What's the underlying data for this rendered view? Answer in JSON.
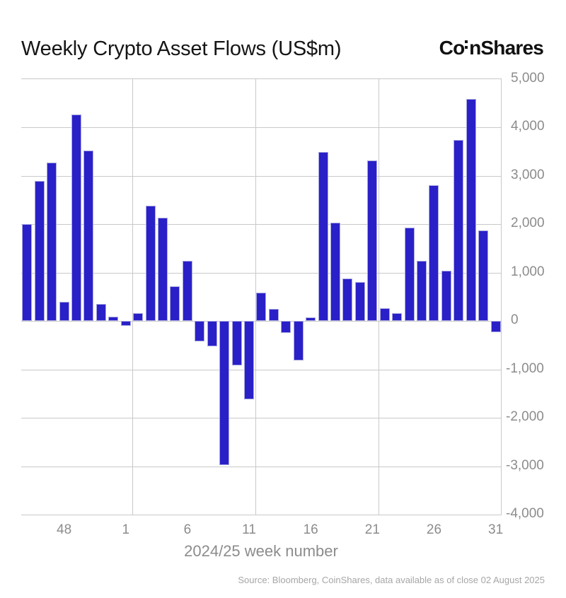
{
  "header": {
    "title": "Weekly Crypto Asset Flows (US$m)",
    "logo_text": "CoinShares",
    "logo_prefix": "Co",
    "logo_suffix": "nShares"
  },
  "footer": {
    "xlabel": "2024/25 week number",
    "source": "Source: Bloomberg, CoinShares, data available as of close 02 August 2025"
  },
  "colors": {
    "bar": "#2a20c8",
    "bar_edge": "#a9a9e0",
    "grid": "#c9c9c9",
    "axis_text": "#8c8c8c",
    "source_text": "#a6a6a6",
    "title_text": "#151515"
  },
  "chart_data": {
    "type": "bar",
    "title": "Weekly Crypto Asset Flows (US$m)",
    "xlabel": "2024/25 week number",
    "ylabel": "",
    "ylim": [
      -4000,
      5000
    ],
    "grid": true,
    "legend": "none",
    "bar_color": "#2a20c8",
    "categories": [
      "45",
      "46",
      "47",
      "48",
      "49",
      "50",
      "51",
      "52",
      "1",
      "2",
      "3",
      "4",
      "5",
      "6",
      "7",
      "8",
      "9",
      "10",
      "11",
      "12",
      "13",
      "14",
      "15",
      "16",
      "17",
      "18",
      "19",
      "20",
      "21",
      "22",
      "23",
      "24",
      "25",
      "26",
      "27",
      "28",
      "29",
      "30",
      "31"
    ],
    "values": [
      2000,
      2900,
      3280,
      400,
      4270,
      3520,
      350,
      90,
      -100,
      160,
      2390,
      2130,
      720,
      1240,
      -420,
      -530,
      -2980,
      -910,
      -1620,
      590,
      250,
      -240,
      -810,
      80,
      3500,
      2040,
      880,
      800,
      3320,
      270,
      160,
      1930,
      1250,
      2810,
      1040,
      3740,
      4590,
      1880,
      -230
    ],
    "x_ticks": [
      {
        "label": "48",
        "index": 3
      },
      {
        "label": "1",
        "index": 8
      },
      {
        "label": "6",
        "index": 13
      },
      {
        "label": "11",
        "index": 18
      },
      {
        "label": "16",
        "index": 23
      },
      {
        "label": "21",
        "index": 28
      },
      {
        "label": "26",
        "index": 33
      },
      {
        "label": "31",
        "index": 38
      }
    ],
    "y_ticks": [
      {
        "label": "5,000",
        "value": 5000
      },
      {
        "label": "4,000",
        "value": 4000
      },
      {
        "label": "3,000",
        "value": 3000
      },
      {
        "label": "2,000",
        "value": 2000
      },
      {
        "label": "1,000",
        "value": 1000
      },
      {
        "label": "0",
        "value": 0
      },
      {
        "label": "-1,000",
        "value": -1000
      },
      {
        "label": "-2,000",
        "value": -2000
      },
      {
        "label": "-3,000",
        "value": -3000
      },
      {
        "label": "-4,000",
        "value": -4000
      }
    ],
    "vgrid_week_indices": [
      8,
      18,
      28,
      38
    ]
  }
}
